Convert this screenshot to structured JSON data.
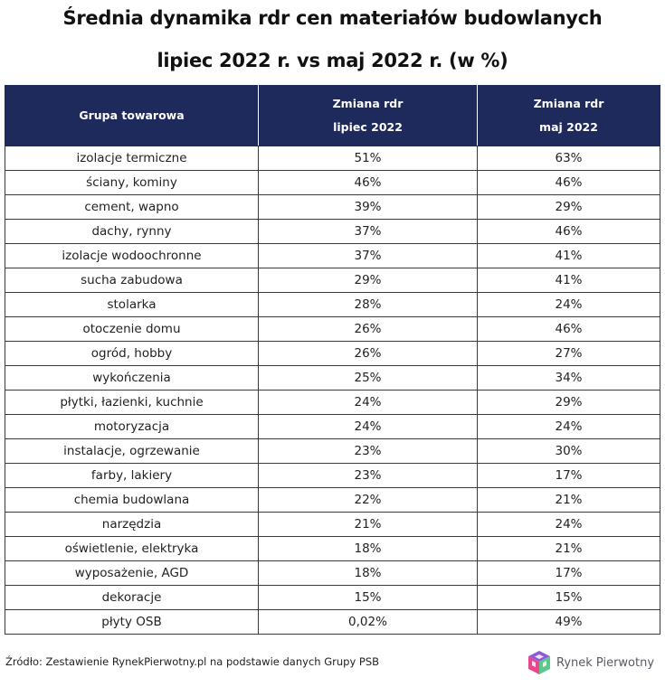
{
  "title": {
    "line1": "Średnia dynamika rdr cen materiałów budowlanych",
    "line2": "lipiec 2022 r. vs maj 2022 r. (w %)"
  },
  "chart_data": {
    "type": "table",
    "columns": [
      {
        "line1": "Grupa towarowa",
        "line2": ""
      },
      {
        "line1": "Zmiana rdr",
        "line2": "lipiec 2022"
      },
      {
        "line1": "Zmiana rdr",
        "line2": "maj 2022"
      }
    ],
    "rows": [
      [
        "izolacje termiczne",
        "51%",
        "63%"
      ],
      [
        "ściany, kominy",
        "46%",
        "46%"
      ],
      [
        "cement, wapno",
        "39%",
        "29%"
      ],
      [
        "dachy, rynny",
        "37%",
        "46%"
      ],
      [
        "izolacje wodoochronne",
        "37%",
        "41%"
      ],
      [
        "sucha zabudowa",
        "29%",
        "41%"
      ],
      [
        "stolarka",
        "28%",
        "24%"
      ],
      [
        "otoczenie domu",
        "26%",
        "46%"
      ],
      [
        "ogród, hobby",
        "26%",
        "27%"
      ],
      [
        "wykończenia",
        "25%",
        "34%"
      ],
      [
        "płytki, łazienki, kuchnie",
        "24%",
        "29%"
      ],
      [
        "motoryzacja",
        "24%",
        "24%"
      ],
      [
        "instalacje, ogrzewanie",
        "23%",
        "30%"
      ],
      [
        "farby, lakiery",
        "23%",
        "17%"
      ],
      [
        "chemia budowlana",
        "22%",
        "21%"
      ],
      [
        "narzędzia",
        "21%",
        "24%"
      ],
      [
        "oświetlenie, elektryka",
        "18%",
        "21%"
      ],
      [
        "wyposażenie, AGD",
        "18%",
        "17%"
      ],
      [
        "dekoracje",
        "15%",
        "15%"
      ],
      [
        "płyty OSB",
        "0,02%",
        "49%"
      ]
    ]
  },
  "footer": {
    "source": "Źródło: Zestawienie RynekPierwotny.pl na podstawie danych Grupy PSB",
    "logo_text": "Rynek Pierwotny",
    "logo_icon": "cube-logo-icon"
  },
  "colors": {
    "header_bg": "#1f2a5c",
    "header_text": "#ffffff",
    "logo_pink": "#e9468f",
    "logo_purple": "#8e5bd6",
    "logo_green": "#5cc98a",
    "logo_blue": "#7fb2e8"
  }
}
